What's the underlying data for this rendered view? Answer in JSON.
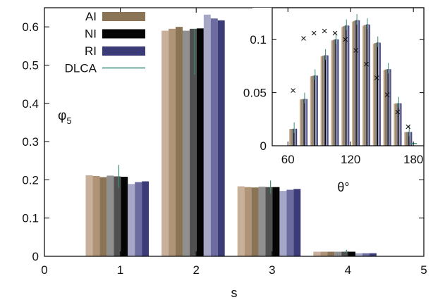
{
  "chart_data": [
    {
      "id": "main",
      "type": "bar",
      "xlabel": "s",
      "ylabel": "φ",
      "ylabel_sub": "5",
      "xlim": [
        0,
        5
      ],
      "ylim": [
        0,
        0.65
      ],
      "xticks": [
        0,
        1,
        2,
        3,
        4,
        5
      ],
      "yticks": [
        0,
        0.1,
        0.2,
        0.3,
        0.4,
        0.5,
        0.6
      ],
      "categories": [
        1,
        2,
        3,
        4
      ],
      "legend": {
        "placement": "top-left",
        "items": [
          {
            "label": "AI",
            "color": "#8b7355"
          },
          {
            "label": "NI",
            "color": "#050505"
          },
          {
            "label": "RI",
            "color": "#3b3b78"
          },
          {
            "label": "DLCA",
            "color": "#3a8a78"
          }
        ]
      },
      "series": [
        {
          "group": "AI",
          "shade": 0,
          "color": "#c8b09a",
          "values": [
            0.212,
            0.59,
            0.183,
            0.012
          ]
        },
        {
          "group": "AI",
          "shade": 1,
          "color": "#b09478",
          "values": [
            0.21,
            0.595,
            0.181,
            0.012
          ]
        },
        {
          "group": "AI",
          "shade": 2,
          "color": "#8b7355",
          "values": [
            0.207,
            0.6,
            0.18,
            0.012
          ]
        },
        {
          "group": "NI",
          "shade": 0,
          "color": "#909090",
          "values": [
            0.211,
            0.59,
            0.182,
            0.012
          ]
        },
        {
          "group": "NI",
          "shade": 1,
          "color": "#505050",
          "values": [
            0.209,
            0.595,
            0.181,
            0.012
          ]
        },
        {
          "group": "NI",
          "shade": 2,
          "color": "#050505",
          "values": [
            0.208,
            0.596,
            0.181,
            0.012
          ]
        },
        {
          "group": "RI",
          "shade": 0,
          "color": "#a6a6c6",
          "values": [
            0.189,
            0.632,
            0.171,
            0.008
          ]
        },
        {
          "group": "RI",
          "shade": 1,
          "color": "#6c6ca0",
          "values": [
            0.194,
            0.622,
            0.174,
            0.008
          ]
        },
        {
          "group": "RI",
          "shade": 2,
          "color": "#3b3b78",
          "values": [
            0.196,
            0.617,
            0.176,
            0.008
          ]
        }
      ],
      "dlca": {
        "color": "#3a8a78",
        "center": [
          0.209,
          0.535,
          0.181,
          0.012
        ],
        "err": [
          0.03,
          0.06,
          0.017,
          0.005
        ]
      }
    },
    {
      "id": "inset",
      "type": "bar",
      "xlabel": "θ°",
      "xlim": [
        45,
        190
      ],
      "ylim": [
        0,
        0.13
      ],
      "xticks": [
        60,
        120,
        180
      ],
      "yticks": [
        0,
        0.05,
        0.1
      ],
      "ytick_labels": [
        "0",
        "0.05",
        "0.1"
      ],
      "bin_centers": [
        65,
        75,
        85,
        95,
        105,
        115,
        125,
        135,
        145,
        155,
        165,
        175
      ],
      "bar_heights": [
        0.016,
        0.044,
        0.066,
        0.085,
        0.1,
        0.113,
        0.118,
        0.114,
        0.097,
        0.072,
        0.04,
        0.013
      ],
      "markers": {
        "symbol": "×",
        "x": [
          65,
          75,
          85,
          95,
          105,
          115,
          125,
          135,
          145,
          155,
          165,
          175
        ],
        "y": [
          0.052,
          0.101,
          0.106,
          0.108,
          0.106,
          0.1,
          0.09,
          0.077,
          0.064,
          0.048,
          0.032,
          0.018
        ]
      },
      "dlca_markers": {
        "x": [
          180
        ],
        "y": [
          0.002
        ]
      }
    }
  ]
}
